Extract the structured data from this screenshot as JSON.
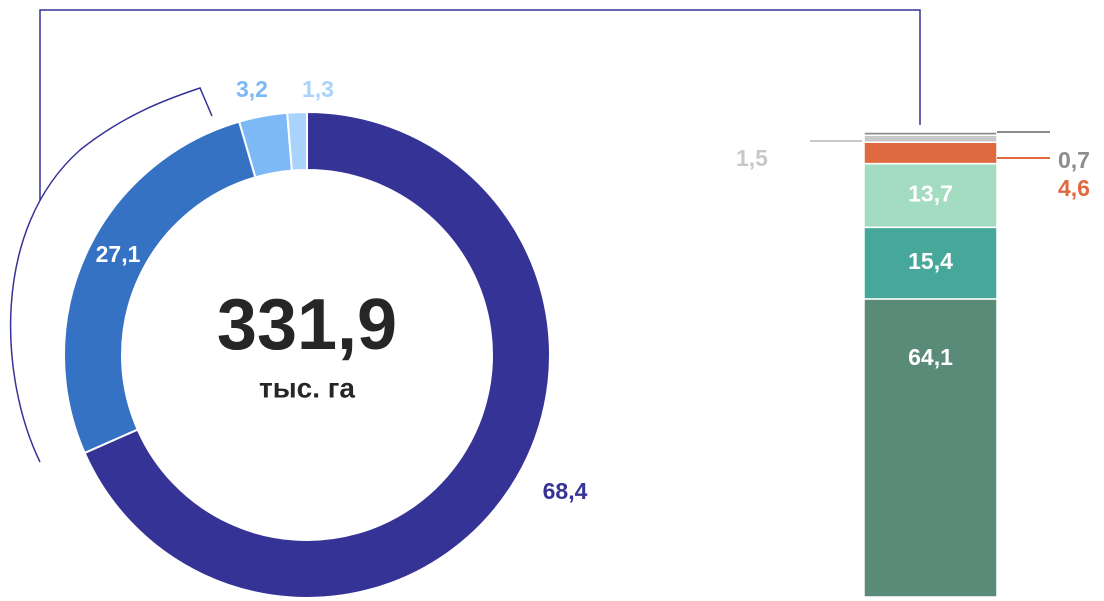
{
  "chart_data": [
    {
      "type": "donut",
      "values": [
        68.4,
        27.1,
        3.2,
        1.3
      ],
      "value_labels": [
        "68,4",
        "27,1",
        "3,2",
        "1,3"
      ],
      "colors": [
        "#353396",
        "#3672c4",
        "#7db8f7",
        "#a9d3fb"
      ],
      "label_colors": [
        "#353396",
        "#ffffff",
        "#7db8f7",
        "#a9d3fb"
      ],
      "center_value": "331,9",
      "center_unit": "тыс. га"
    },
    {
      "type": "stacked_bar",
      "values": [
        64.1,
        15.4,
        13.7,
        4.6,
        1.5,
        0.7
      ],
      "value_labels": [
        "64,1",
        "15,4",
        "13,7",
        "4,6",
        "1,5",
        "0,7"
      ],
      "colors": [
        "#5a8a78",
        "#45a89a",
        "#a3dcc0",
        "#e06a40",
        "#c8c8c8",
        "#8c8c8c"
      ],
      "label_colors": [
        "#ffffff",
        "#ffffff",
        "#ffffff",
        "#e06a40",
        "#c8c8c8",
        "#8c8c8c"
      ]
    }
  ]
}
